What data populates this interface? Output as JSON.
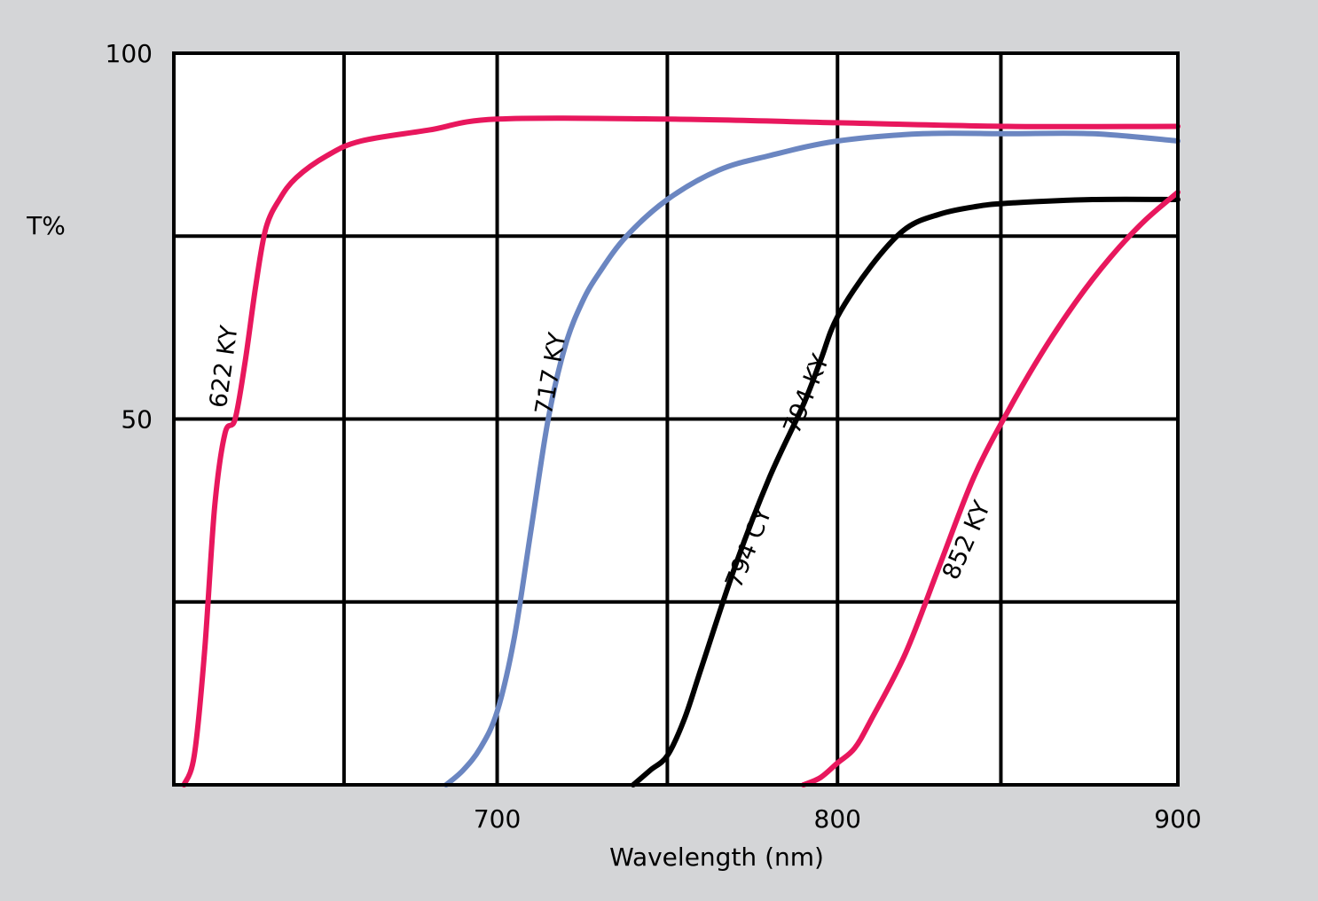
{
  "chart_data": {
    "type": "line",
    "title": "",
    "xlabel": "Wavelength (nm)",
    "ylabel": "T%",
    "xlim": [
      605,
      900
    ],
    "ylim": [
      0,
      100
    ],
    "x_ticks": [
      {
        "value": 700,
        "label": "700"
      },
      {
        "value": 800,
        "label": "800"
      },
      {
        "value": 900,
        "label": "900"
      }
    ],
    "y_ticks": [
      {
        "value": 50,
        "label": "50"
      },
      {
        "value": 100,
        "label": "100"
      }
    ],
    "grid": true,
    "grid_x": [
      655,
      700,
      750,
      800,
      848,
      900
    ],
    "grid_y": [
      25,
      50,
      75,
      100
    ],
    "series": [
      {
        "name": "622 KY",
        "color": "#e8175d",
        "x": [
          608,
          611,
          614,
          617,
          620,
          623,
          626,
          629,
          632,
          636,
          641,
          650,
          660,
          680,
          700,
          750,
          800,
          850,
          900
        ],
        "y": [
          0,
          4,
          18,
          38,
          48,
          50,
          58,
          68,
          76,
          80,
          83,
          86,
          88,
          89.5,
          91,
          91,
          90.5,
          90,
          90
        ]
      },
      {
        "name": "717 KY",
        "color": "#6b86c1",
        "x": [
          685,
          690,
          695,
          700,
          705,
          710,
          715,
          720,
          725,
          730,
          738,
          750,
          765,
          780,
          800,
          825,
          850,
          875,
          900
        ],
        "y": [
          0,
          2,
          5,
          10,
          20,
          35,
          50,
          60,
          66,
          70,
          75,
          80,
          84,
          86,
          88,
          89,
          89,
          89,
          88
        ]
      },
      {
        "name": "794 CY / 794 KY",
        "color": "#000000",
        "x": [
          740,
          745,
          750,
          755,
          760,
          770,
          780,
          790,
          795,
          800,
          810,
          820,
          830,
          840,
          850,
          875,
          900
        ],
        "y": [
          0,
          2,
          4,
          9,
          16,
          30,
          42,
          52,
          58,
          64,
          71,
          76,
          78,
          79,
          79.5,
          80,
          80
        ]
      },
      {
        "name": "852 KY",
        "color": "#e8175d",
        "x": [
          790,
          795,
          800,
          805,
          810,
          820,
          830,
          840,
          850,
          860,
          870,
          880,
          890,
          900
        ],
        "y": [
          0,
          1,
          3,
          5,
          9,
          18,
          30,
          42,
          51,
          59,
          66,
          72,
          77,
          81
        ]
      }
    ],
    "annotations": [
      {
        "text": "622 KY",
        "x": 622,
        "y": 57,
        "rotate": -82
      },
      {
        "text": "717 KY",
        "x": 718,
        "y": 56,
        "rotate": -80
      },
      {
        "text": "794 KY",
        "x": 793,
        "y": 53,
        "rotate": -68
      },
      {
        "text": "794 CY",
        "x": 776,
        "y": 32,
        "rotate": -68
      },
      {
        "text": "852 KY",
        "x": 840,
        "y": 33,
        "rotate": -66
      }
    ]
  }
}
